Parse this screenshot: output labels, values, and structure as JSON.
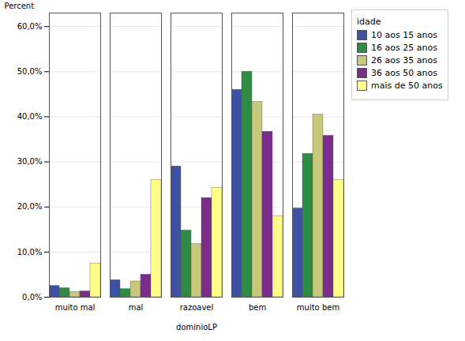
{
  "chart_data": {
    "type": "bar",
    "xlabel": "dominioLP",
    "ylabel": "Percent",
    "categories": [
      "muito mal",
      "mal",
      "razoavel",
      "bem",
      "muito bem"
    ],
    "series": [
      {
        "name": "10 aos 15 anos",
        "color": "#3F51A3",
        "values": [
          2.5,
          3.8,
          29.0,
          46.0,
          19.7
        ]
      },
      {
        "name": "16 aos 25 anos",
        "color": "#2E8B44",
        "values": [
          2.0,
          1.8,
          14.8,
          50.0,
          31.8
        ]
      },
      {
        "name": "26 aos 35 anos",
        "color": "#C8C87A",
        "values": [
          1.2,
          3.5,
          11.8,
          43.3,
          40.5
        ]
      },
      {
        "name": "36 aos 50 anos",
        "color": "#7B2D8B",
        "values": [
          1.3,
          5.0,
          22.0,
          36.7,
          35.8
        ]
      },
      {
        "name": "mais de 50 anos",
        "color": "#FFFF88",
        "values": [
          7.5,
          26.0,
          24.3,
          18.0,
          26.0
        ]
      }
    ],
    "legend_title": "idade",
    "legend": "right",
    "ylim": [
      0,
      63
    ],
    "yticks": [
      {
        "value": 0,
        "label": "0,0%"
      },
      {
        "value": 10,
        "label": "10,0%"
      },
      {
        "value": 20,
        "label": "20,0%"
      },
      {
        "value": 30,
        "label": "30,0%"
      },
      {
        "value": 40,
        "label": "40,0%"
      },
      {
        "value": 50,
        "label": "50,0%"
      },
      {
        "value": 60,
        "label": "60,0%"
      }
    ],
    "grid": true
  }
}
